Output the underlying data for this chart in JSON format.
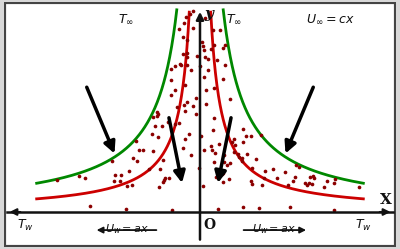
{
  "bg_color": "#d8d8d8",
  "inner_bg": "#ffffff",
  "border_color": "#444444",
  "red_curve_color": "#cc0000",
  "green_curve_color": "#008800",
  "dot_color": "#8b0000",
  "axis_color": "#111111",
  "text_color": "#111111",
  "xlim": [
    -3.6,
    3.6
  ],
  "ylim": [
    -0.42,
    2.55
  ],
  "red_k": 0.48,
  "green_k": 1.05,
  "x_min_curve": 0.14,
  "x_max_curve": 3.0
}
